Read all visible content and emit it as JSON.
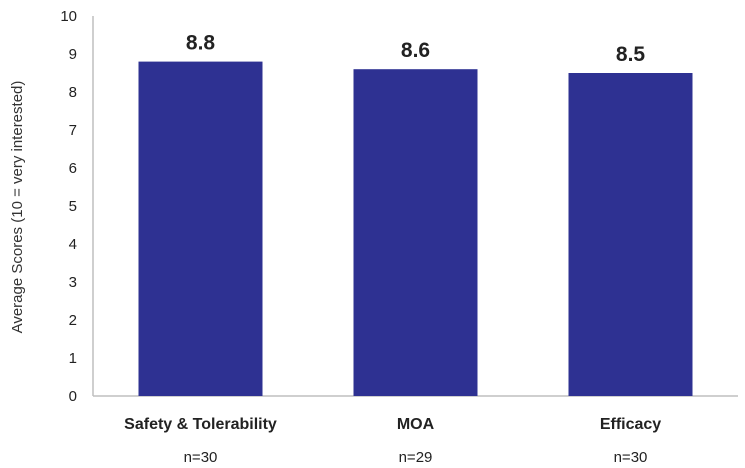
{
  "chart_data": {
    "type": "bar",
    "title": "",
    "xlabel": "",
    "ylabel": "Average Scores (10 = very interested)",
    "categories": [
      "Safety & Tolerability",
      "MOA",
      "Efficacy"
    ],
    "sample_sizes": [
      "n=30",
      "n=29",
      "n=30"
    ],
    "values": [
      8.8,
      8.6,
      8.5
    ],
    "value_labels": [
      "8.8",
      "8.6",
      "8.5"
    ],
    "ylim": [
      0,
      10
    ],
    "yticks": [
      0,
      1,
      2,
      3,
      4,
      5,
      6,
      7,
      8,
      9,
      10
    ],
    "grid": false,
    "legend": "none",
    "bar_color": "#2e3192",
    "axis_color": "#bfbfbf"
  }
}
